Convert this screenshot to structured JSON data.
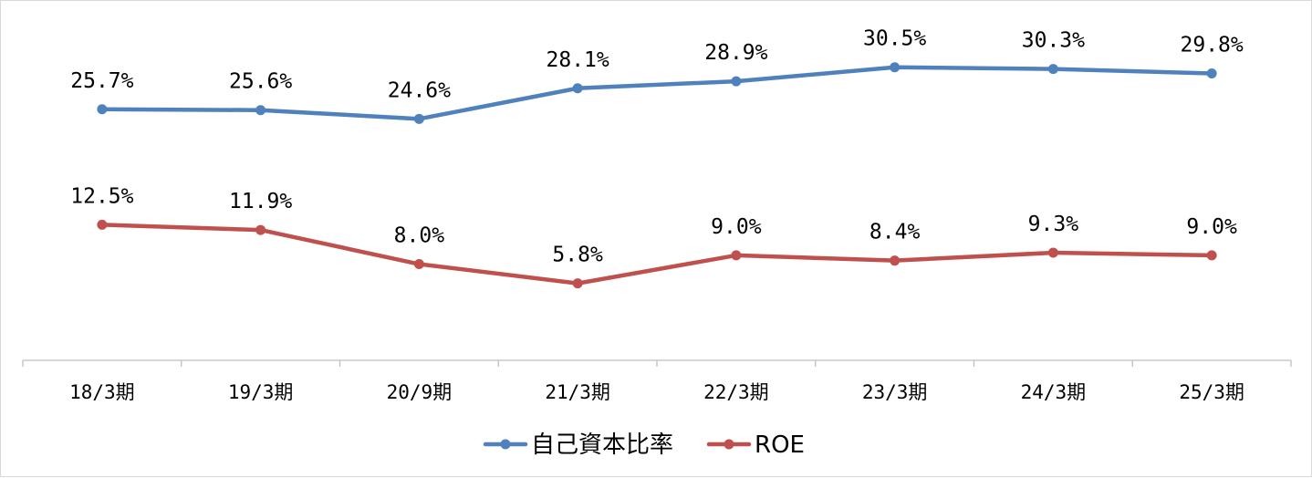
{
  "chart_data": {
    "type": "line",
    "categories": [
      "18/3期",
      "19/3期",
      "20/9期",
      "21/3期",
      "22/3期",
      "23/3期",
      "24/3期",
      "25/3期"
    ],
    "series": [
      {
        "name": "自己資本比率",
        "values": [
          25.7,
          25.6,
          24.6,
          28.1,
          28.9,
          30.5,
          30.3,
          29.8
        ],
        "labels": [
          "25.7%",
          "25.6%",
          "24.6%",
          "28.1%",
          "28.9%",
          "30.5%",
          "30.3%",
          "29.8%"
        ],
        "color": "#4f81bd"
      },
      {
        "name": "ROE",
        "values": [
          12.5,
          11.9,
          8.0,
          5.8,
          9.0,
          8.4,
          9.3,
          9.0
        ],
        "labels": [
          "12.5%",
          "11.9%",
          "8.0%",
          "5.8%",
          "9.0%",
          "8.4%",
          "9.3%",
          "9.0%"
        ],
        "color": "#c0504d"
      }
    ],
    "title": "",
    "xlabel": "",
    "ylabel": "",
    "ylim": [
      -3,
      36
    ],
    "grid": false,
    "y_axis_visible": false,
    "legend_position": "bottom"
  }
}
